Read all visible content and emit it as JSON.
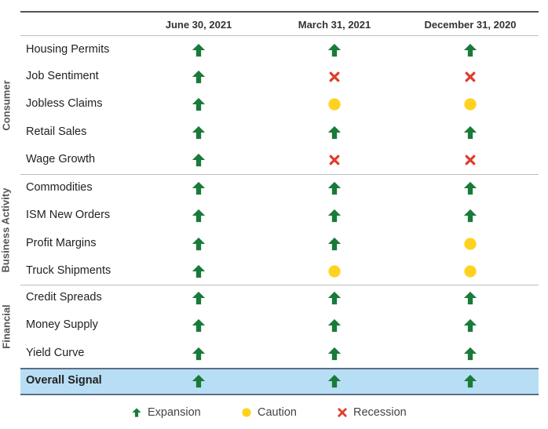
{
  "columns": [
    "June 30, 2021",
    "March 31, 2021",
    "December 31, 2020"
  ],
  "groups": [
    {
      "label": "Consumer"
    },
    {
      "label": "Business Activity"
    },
    {
      "label": "Financial"
    }
  ],
  "rows": [
    {
      "label": "Housing Permits",
      "signals": [
        "expansion",
        "expansion",
        "expansion"
      ]
    },
    {
      "label": "Job Sentiment",
      "signals": [
        "expansion",
        "recession",
        "recession"
      ]
    },
    {
      "label": "Jobless Claims",
      "signals": [
        "expansion",
        "caution",
        "caution"
      ]
    },
    {
      "label": "Retail Sales",
      "signals": [
        "expansion",
        "expansion",
        "expansion"
      ]
    },
    {
      "label": "Wage Growth",
      "signals": [
        "expansion",
        "recession",
        "recession"
      ]
    },
    {
      "label": "Commodities",
      "signals": [
        "expansion",
        "expansion",
        "expansion"
      ]
    },
    {
      "label": "ISM New Orders",
      "signals": [
        "expansion",
        "expansion",
        "expansion"
      ]
    },
    {
      "label": "Profit Margins",
      "signals": [
        "expansion",
        "expansion",
        "caution"
      ]
    },
    {
      "label": "Truck Shipments",
      "signals": [
        "expansion",
        "caution",
        "caution"
      ]
    },
    {
      "label": "Credit Spreads",
      "signals": [
        "expansion",
        "expansion",
        "expansion"
      ]
    },
    {
      "label": "Money Supply",
      "signals": [
        "expansion",
        "expansion",
        "expansion"
      ]
    },
    {
      "label": "Yield Curve",
      "signals": [
        "expansion",
        "expansion",
        "expansion"
      ]
    }
  ],
  "overall": {
    "label": "Overall Signal",
    "signals": [
      "expansion",
      "expansion",
      "expansion"
    ]
  },
  "legend": [
    {
      "key": "expansion",
      "label": "Expansion"
    },
    {
      "key": "caution",
      "label": "Caution"
    },
    {
      "key": "recession",
      "label": "Recession"
    }
  ],
  "colors": {
    "expansion": "#1a7a3a",
    "caution": "#ffd21f",
    "recession": "#e23b2b",
    "overall_band": "#b8def5"
  }
}
